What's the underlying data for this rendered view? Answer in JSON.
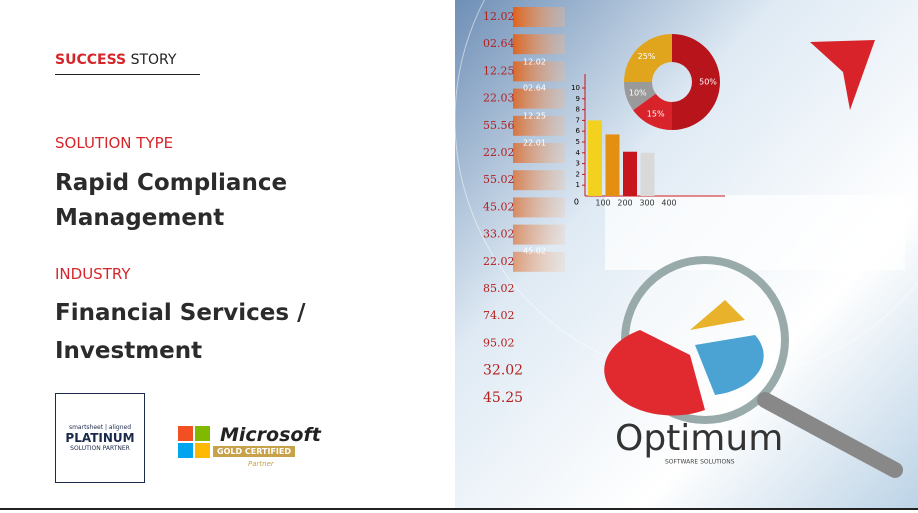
{
  "header": {
    "label_bold": "SUCCESS",
    "label_rest": "STORY"
  },
  "solution_type": {
    "label": "SOLUTION TYPE",
    "value": [
      "Rapid Compliance",
      "Management"
    ]
  },
  "industry": {
    "label": "INDUSTRY",
    "value": [
      "Financial Services /",
      "Investment"
    ]
  },
  "badges": {
    "smartsheet": {
      "brand": "smartsheet | aligned",
      "tier": "PLATINUM",
      "role": "SOLUTION PARTNER"
    },
    "microsoft": {
      "brand": "Microsoft",
      "level": "GOLD CERTIFIED",
      "role": "Partner"
    }
  },
  "image": {
    "numbers": [
      "12.02",
      "02.64",
      "12.25",
      "22.03",
      "55.56",
      "22.02",
      "55.02",
      "45.02",
      "33.02",
      "22.02",
      "85.02",
      "74.02",
      "95.02",
      "32.02",
      "45.25"
    ],
    "bar_numbers": [
      "12.02",
      "02.64",
      "12.25",
      "22.01",
      "45.02"
    ],
    "pie": {
      "values": [
        50,
        25,
        10,
        15
      ],
      "value_labels": [
        "50%",
        "25%",
        "10%",
        "15%"
      ],
      "colors": [
        "#b8141c",
        "#e0a51c",
        "#9a9a9a",
        "#d8232a"
      ]
    },
    "bar_chart": {
      "type": "bar",
      "categories": [
        100,
        200,
        300,
        400
      ],
      "values": [
        7,
        5.7,
        4.1,
        4
      ],
      "colors": [
        "#f2d21f",
        "#e28f12",
        "#c8141c",
        "#d9d9d9"
      ],
      "ylim": [
        0,
        10
      ],
      "yticks": [
        1,
        2,
        3,
        4,
        5,
        6,
        7,
        8,
        9,
        10
      ],
      "origin": "0"
    },
    "logo": {
      "name": "Optimum",
      "tagline": "SOFTWARE SOLUTIONS"
    }
  }
}
